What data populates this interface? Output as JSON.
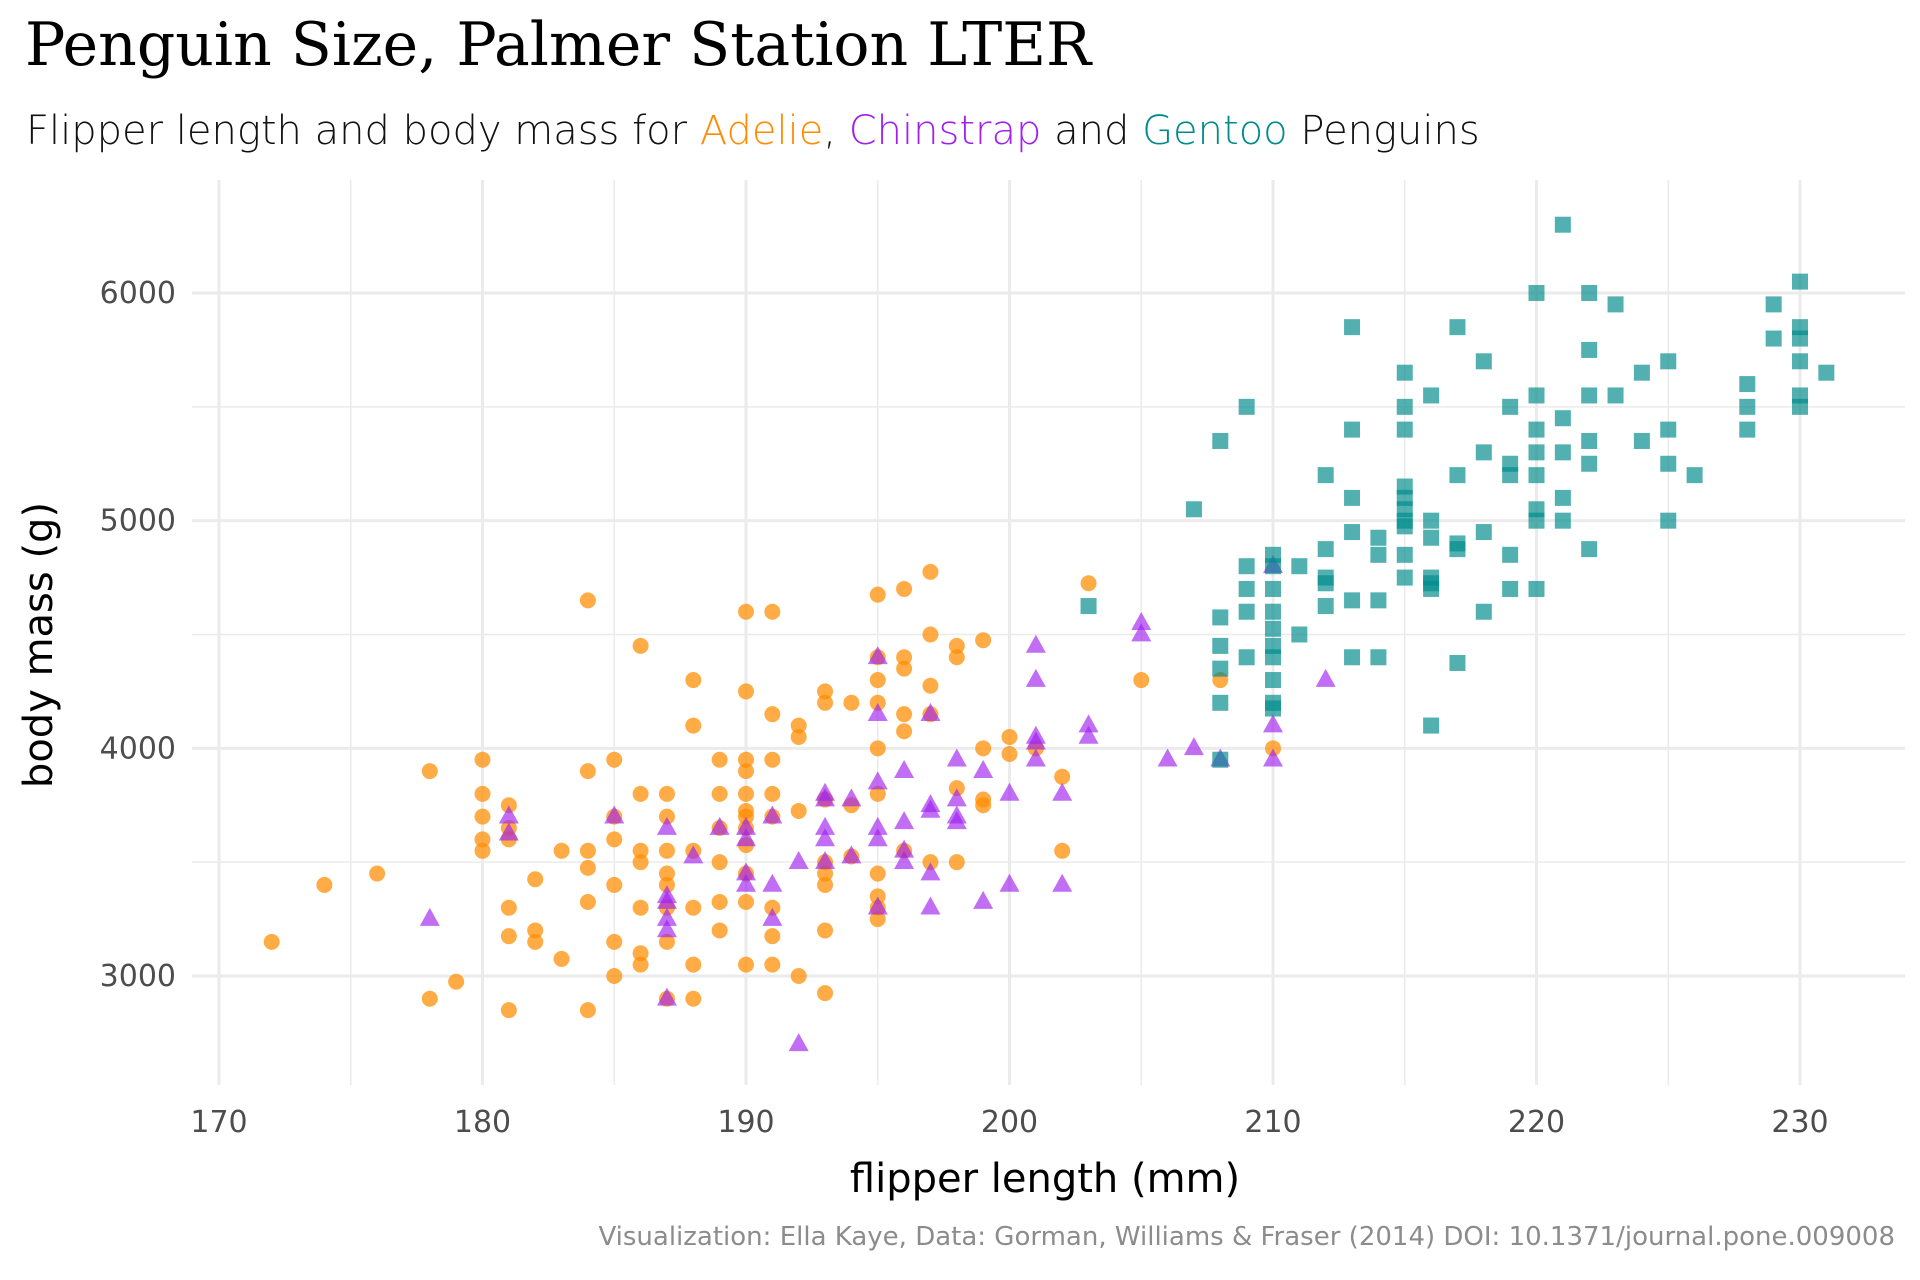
{
  "title": "Penguin Size, Palmer Station LTER",
  "subtitle": {
    "prefix": "Flipper length and body mass for ",
    "adelie": "Adelie",
    "sep1": ", ",
    "chinstrap": "Chinstrap",
    "sep2": " and ",
    "gentoo": "Gentoo",
    "suffix": " Penguins"
  },
  "caption": "Visualization: Ella Kaye, Data: Gorman, Williams & Fraser (2014) DOI: 10.1371/journal.pone.009008",
  "colors": {
    "adelie": "#FF8C00",
    "chinstrap": "#A020F0",
    "gentoo": "#008B8B",
    "grid": "#EBEBEB",
    "tick_text": "#4d4d4d"
  },
  "chart_data": {
    "type": "scatter",
    "xlabel": "flipper length (mm)",
    "ylabel": "body mass (g)",
    "xlim": [
      170,
      234
    ],
    "ylim": [
      2550,
      6450
    ],
    "x_ticks": [
      170,
      180,
      190,
      200,
      210,
      220,
      230
    ],
    "y_ticks": [
      3000,
      4000,
      5000,
      6000
    ],
    "grid": true,
    "legend": "none",
    "series": [
      {
        "name": "Adelie",
        "marker": "circle",
        "points": [
          [
            172,
            3150
          ],
          [
            174,
            3400
          ],
          [
            176,
            3450
          ],
          [
            178,
            3900
          ],
          [
            178,
            2900
          ],
          [
            179,
            2975
          ],
          [
            180,
            3950
          ],
          [
            180,
            3800
          ],
          [
            180,
            3700
          ],
          [
            180,
            3600
          ],
          [
            180,
            3550
          ],
          [
            181,
            3750
          ],
          [
            181,
            3650
          ],
          [
            181,
            3600
          ],
          [
            181,
            3300
          ],
          [
            181,
            3175
          ],
          [
            181,
            2850
          ],
          [
            182,
            3425
          ],
          [
            182,
            3200
          ],
          [
            182,
            3150
          ],
          [
            183,
            3550
          ],
          [
            183,
            3075
          ],
          [
            184,
            4650
          ],
          [
            184,
            3900
          ],
          [
            184,
            3550
          ],
          [
            184,
            3475
          ],
          [
            184,
            3325
          ],
          [
            184,
            2850
          ],
          [
            185,
            3950
          ],
          [
            185,
            3700
          ],
          [
            185,
            3600
          ],
          [
            185,
            3400
          ],
          [
            185,
            3150
          ],
          [
            185,
            3000
          ],
          [
            186,
            4450
          ],
          [
            186,
            3800
          ],
          [
            186,
            3550
          ],
          [
            186,
            3500
          ],
          [
            186,
            3300
          ],
          [
            186,
            3100
          ],
          [
            186,
            3050
          ],
          [
            187,
            3800
          ],
          [
            187,
            3700
          ],
          [
            187,
            3550
          ],
          [
            187,
            3450
          ],
          [
            187,
            3400
          ],
          [
            187,
            3300
          ],
          [
            187,
            3150
          ],
          [
            187,
            2900
          ],
          [
            188,
            4300
          ],
          [
            188,
            4100
          ],
          [
            188,
            3550
          ],
          [
            188,
            3300
          ],
          [
            188,
            3050
          ],
          [
            188,
            2900
          ],
          [
            189,
            3950
          ],
          [
            189,
            3800
          ],
          [
            189,
            3650
          ],
          [
            189,
            3500
          ],
          [
            189,
            3325
          ],
          [
            189,
            3200
          ],
          [
            190,
            4600
          ],
          [
            190,
            4250
          ],
          [
            190,
            3950
          ],
          [
            190,
            3900
          ],
          [
            190,
            3800
          ],
          [
            190,
            3725
          ],
          [
            190,
            3700
          ],
          [
            190,
            3650
          ],
          [
            190,
            3575
          ],
          [
            190,
            3450
          ],
          [
            190,
            3325
          ],
          [
            190,
            3050
          ],
          [
            191,
            4600
          ],
          [
            191,
            4150
          ],
          [
            191,
            3950
          ],
          [
            191,
            3800
          ],
          [
            191,
            3700
          ],
          [
            191,
            3300
          ],
          [
            191,
            3175
          ],
          [
            191,
            3050
          ],
          [
            192,
            4100
          ],
          [
            192,
            4050
          ],
          [
            192,
            3725
          ],
          [
            192,
            3000
          ],
          [
            193,
            4250
          ],
          [
            193,
            4200
          ],
          [
            193,
            3775
          ],
          [
            193,
            3500
          ],
          [
            193,
            3450
          ],
          [
            193,
            3400
          ],
          [
            193,
            3200
          ],
          [
            193,
            2925
          ],
          [
            194,
            4200
          ],
          [
            194,
            3750
          ],
          [
            194,
            3525
          ],
          [
            195,
            4675
          ],
          [
            195,
            4400
          ],
          [
            195,
            4300
          ],
          [
            195,
            4200
          ],
          [
            195,
            4000
          ],
          [
            195,
            3800
          ],
          [
            195,
            3450
          ],
          [
            195,
            3350
          ],
          [
            195,
            3300
          ],
          [
            195,
            3250
          ],
          [
            196,
            4700
          ],
          [
            196,
            4400
          ],
          [
            196,
            4350
          ],
          [
            196,
            4150
          ],
          [
            196,
            4075
          ],
          [
            196,
            3550
          ],
          [
            197,
            4775
          ],
          [
            197,
            4500
          ],
          [
            197,
            4275
          ],
          [
            197,
            4150
          ],
          [
            197,
            3500
          ],
          [
            198,
            4450
          ],
          [
            198,
            4400
          ],
          [
            198,
            3825
          ],
          [
            198,
            3500
          ],
          [
            199,
            4475
          ],
          [
            199,
            4000
          ],
          [
            199,
            3775
          ],
          [
            199,
            3750
          ],
          [
            200,
            4050
          ],
          [
            200,
            3975
          ],
          [
            201,
            4000
          ],
          [
            202,
            3875
          ],
          [
            202,
            3550
          ],
          [
            203,
            4725
          ],
          [
            205,
            4300
          ],
          [
            208,
            4300
          ],
          [
            210,
            4000
          ]
        ]
      },
      {
        "name": "Chinstrap",
        "marker": "triangle",
        "points": [
          [
            178,
            3250
          ],
          [
            181,
            3700
          ],
          [
            181,
            3625
          ],
          [
            185,
            3700
          ],
          [
            187,
            3350
          ],
          [
            187,
            3325
          ],
          [
            187,
            3250
          ],
          [
            187,
            3200
          ],
          [
            187,
            2900
          ],
          [
            187,
            3650
          ],
          [
            188,
            3525
          ],
          [
            189,
            3650
          ],
          [
            190,
            3600
          ],
          [
            190,
            3450
          ],
          [
            190,
            3400
          ],
          [
            190,
            3650
          ],
          [
            191,
            3700
          ],
          [
            191,
            3400
          ],
          [
            191,
            3250
          ],
          [
            192,
            3500
          ],
          [
            192,
            2700
          ],
          [
            193,
            3800
          ],
          [
            193,
            3775
          ],
          [
            193,
            3650
          ],
          [
            193,
            3600
          ],
          [
            193,
            3500
          ],
          [
            194,
            3775
          ],
          [
            194,
            3525
          ],
          [
            195,
            4400
          ],
          [
            195,
            4150
          ],
          [
            195,
            3850
          ],
          [
            195,
            3650
          ],
          [
            195,
            3600
          ],
          [
            195,
            3300
          ],
          [
            196,
            3900
          ],
          [
            196,
            3675
          ],
          [
            196,
            3550
          ],
          [
            196,
            3500
          ],
          [
            197,
            4150
          ],
          [
            197,
            3750
          ],
          [
            197,
            3725
          ],
          [
            197,
            3450
          ],
          [
            197,
            3300
          ],
          [
            198,
            3950
          ],
          [
            198,
            3775
          ],
          [
            198,
            3700
          ],
          [
            198,
            3675
          ],
          [
            199,
            3900
          ],
          [
            199,
            3325
          ],
          [
            200,
            3800
          ],
          [
            200,
            3400
          ],
          [
            201,
            4450
          ],
          [
            201,
            4300
          ],
          [
            201,
            4050
          ],
          [
            201,
            4025
          ],
          [
            201,
            3950
          ],
          [
            202,
            3800
          ],
          [
            202,
            3400
          ],
          [
            203,
            4100
          ],
          [
            203,
            4050
          ],
          [
            205,
            4550
          ],
          [
            205,
            4500
          ],
          [
            206,
            3950
          ],
          [
            207,
            4000
          ],
          [
            208,
            3950
          ],
          [
            210,
            4800
          ],
          [
            210,
            4100
          ],
          [
            210,
            3950
          ],
          [
            212,
            4300
          ]
        ]
      },
      {
        "name": "Gentoo",
        "marker": "square",
        "points": [
          [
            203,
            4625
          ],
          [
            207,
            5050
          ],
          [
            208,
            5350
          ],
          [
            208,
            4575
          ],
          [
            208,
            4450
          ],
          [
            208,
            4350
          ],
          [
            208,
            4200
          ],
          [
            208,
            3950
          ],
          [
            209,
            5500
          ],
          [
            209,
            4800
          ],
          [
            209,
            4700
          ],
          [
            209,
            4600
          ],
          [
            209,
            4400
          ],
          [
            210,
            4850
          ],
          [
            210,
            4800
          ],
          [
            210,
            4700
          ],
          [
            210,
            4600
          ],
          [
            210,
            4525
          ],
          [
            210,
            4450
          ],
          [
            210,
            4400
          ],
          [
            210,
            4300
          ],
          [
            210,
            4200
          ],
          [
            210,
            4175
          ],
          [
            211,
            4800
          ],
          [
            211,
            4500
          ],
          [
            212,
            5200
          ],
          [
            212,
            4875
          ],
          [
            212,
            4750
          ],
          [
            212,
            4725
          ],
          [
            212,
            4625
          ],
          [
            213,
            5850
          ],
          [
            213,
            5400
          ],
          [
            213,
            5100
          ],
          [
            213,
            4950
          ],
          [
            213,
            4650
          ],
          [
            213,
            4400
          ],
          [
            214,
            4925
          ],
          [
            214,
            4850
          ],
          [
            214,
            4650
          ],
          [
            214,
            4400
          ],
          [
            215,
            5650
          ],
          [
            215,
            5500
          ],
          [
            215,
            5400
          ],
          [
            215,
            5150
          ],
          [
            215,
            5100
          ],
          [
            215,
            5050
          ],
          [
            215,
            5000
          ],
          [
            215,
            4975
          ],
          [
            215,
            4850
          ],
          [
            215,
            4750
          ],
          [
            216,
            5550
          ],
          [
            216,
            5000
          ],
          [
            216,
            4925
          ],
          [
            216,
            4750
          ],
          [
            216,
            4725
          ],
          [
            216,
            4700
          ],
          [
            216,
            4100
          ],
          [
            217,
            5850
          ],
          [
            217,
            5200
          ],
          [
            217,
            4900
          ],
          [
            217,
            4875
          ],
          [
            217,
            4375
          ],
          [
            218,
            5700
          ],
          [
            218,
            5300
          ],
          [
            218,
            4950
          ],
          [
            218,
            4600
          ],
          [
            219,
            5500
          ],
          [
            219,
            5250
          ],
          [
            219,
            5200
          ],
          [
            219,
            4850
          ],
          [
            219,
            4700
          ],
          [
            220,
            6000
          ],
          [
            220,
            5550
          ],
          [
            220,
            5400
          ],
          [
            220,
            5300
          ],
          [
            220,
            5200
          ],
          [
            220,
            5050
          ],
          [
            220,
            5000
          ],
          [
            220,
            4700
          ],
          [
            221,
            6300
          ],
          [
            221,
            5450
          ],
          [
            221,
            5300
          ],
          [
            221,
            5100
          ],
          [
            221,
            5000
          ],
          [
            222,
            6000
          ],
          [
            222,
            5750
          ],
          [
            222,
            5550
          ],
          [
            222,
            5350
          ],
          [
            222,
            5250
          ],
          [
            222,
            4875
          ],
          [
            223,
            5950
          ],
          [
            223,
            5550
          ],
          [
            224,
            5650
          ],
          [
            224,
            5350
          ],
          [
            225,
            5700
          ],
          [
            225,
            5400
          ],
          [
            225,
            5250
          ],
          [
            225,
            5000
          ],
          [
            226,
            5200
          ],
          [
            228,
            5600
          ],
          [
            228,
            5500
          ],
          [
            228,
            5400
          ],
          [
            229,
            5950
          ],
          [
            229,
            5800
          ],
          [
            230,
            6050
          ],
          [
            230,
            5850
          ],
          [
            230,
            5800
          ],
          [
            230,
            5700
          ],
          [
            230,
            5550
          ],
          [
            230,
            5500
          ],
          [
            231,
            5650
          ]
        ]
      }
    ]
  }
}
